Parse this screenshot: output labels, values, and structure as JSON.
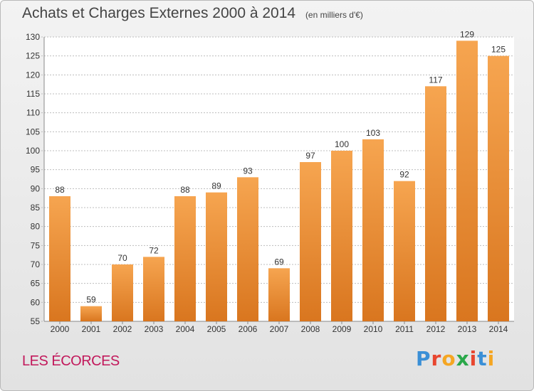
{
  "chart_data": {
    "type": "bar",
    "title": "Achats et Charges Externes 2000 à 2014",
    "unit_note": "(en milliers d'€)",
    "categories": [
      "2000",
      "2001",
      "2002",
      "2003",
      "2004",
      "2005",
      "2006",
      "2007",
      "2008",
      "2009",
      "2010",
      "2011",
      "2012",
      "2013",
      "2014"
    ],
    "values": [
      88,
      59,
      70,
      72,
      88,
      89,
      93,
      69,
      97,
      100,
      103,
      92,
      117,
      129,
      125
    ],
    "ylim": [
      55,
      130
    ],
    "yticks": [
      55,
      60,
      65,
      70,
      75,
      80,
      85,
      90,
      95,
      100,
      105,
      110,
      115,
      120,
      125,
      130
    ],
    "grid": true,
    "bar_color_top": "#f6a550",
    "bar_color_bottom": "#d9761f"
  },
  "place_name": "LES ÉCORCES",
  "brand": {
    "letters": [
      "P",
      "r",
      "o",
      "x",
      "i",
      "t",
      "i"
    ],
    "colors": [
      "#3a8fd6",
      "#e8462f",
      "#f5a623",
      "#2aa84a",
      "#e8462f",
      "#3a8fd6",
      "#f5a623"
    ]
  }
}
